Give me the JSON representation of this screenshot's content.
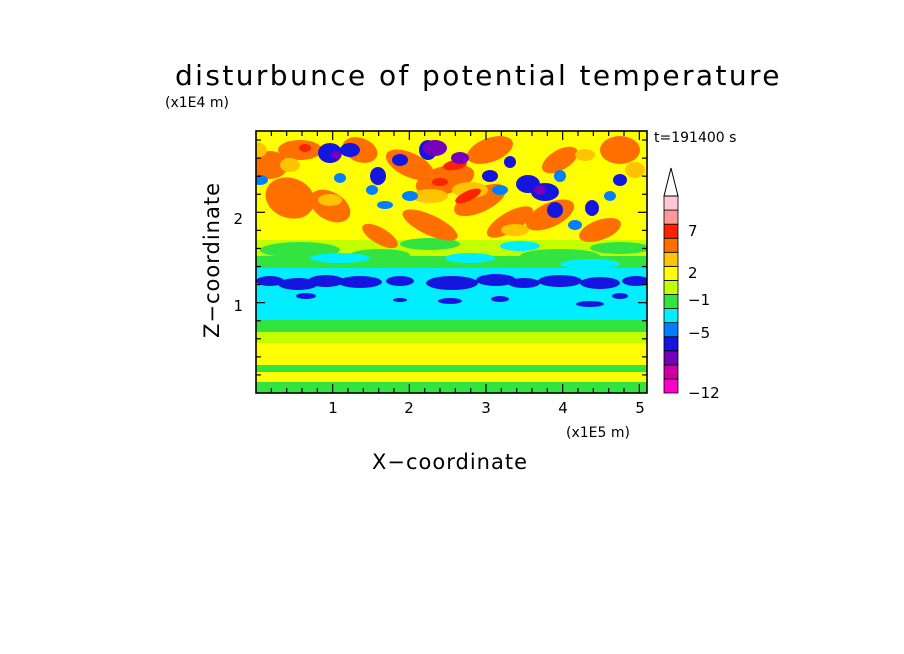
{
  "chart_data": {
    "type": "heatmap",
    "title": "disturbunce of potential temperature",
    "xlabel": "X−coordinate",
    "ylabel": "Z−coordinate",
    "x_units": "(x1E5 m)",
    "y_units": "(x1E4 m)",
    "time_label": "t=191400 s",
    "xlim": [
      0,
      5.1
    ],
    "ylim": [
      0,
      2.9
    ],
    "x_ticks": [
      "1",
      "2",
      "3",
      "4",
      "5"
    ],
    "y_ticks": [
      "1",
      "2"
    ],
    "colorbar": {
      "labels": [
        "7",
        "2",
        "−1",
        "−5",
        "−12"
      ],
      "colors": [
        "#ff00cc",
        "#cc00a0",
        "#7700bb",
        "#1515e0",
        "#0080ff",
        "#00eeff",
        "#33e33f",
        "#c4ff00",
        "#ffff00",
        "#ffc400",
        "#ff6f00",
        "#ff2200",
        "#ff9999",
        "#ffc7d2"
      ],
      "extend": "max"
    }
  }
}
